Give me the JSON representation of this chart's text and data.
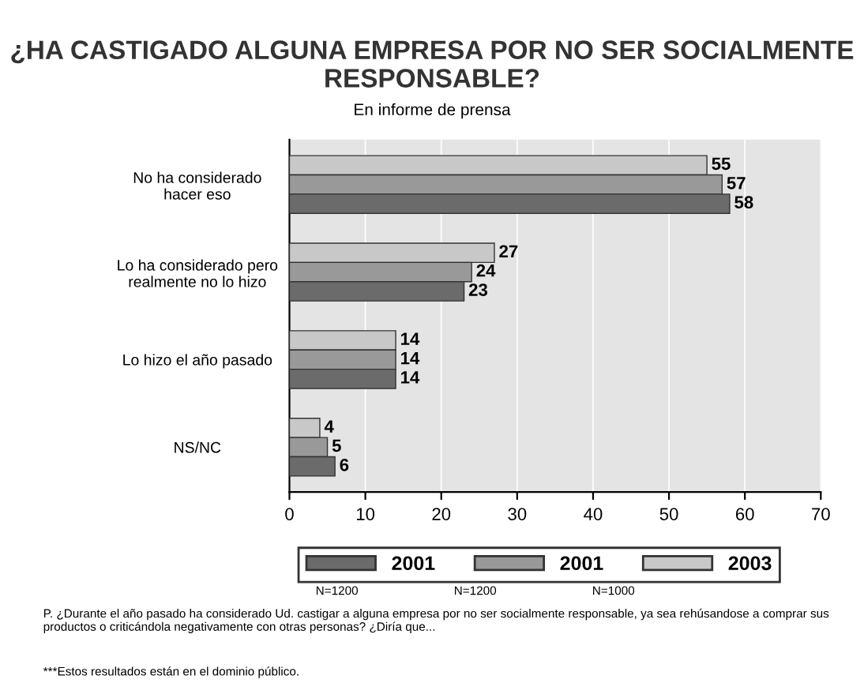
{
  "chart_data": {
    "type": "bar",
    "orientation": "horizontal",
    "title": "¿HA CASTIGADO ALGUNA EMPRESA POR NO SER SOCIALMENTE RESPONSABLE?",
    "subtitle": "En informe de prensa",
    "categories": [
      "No ha considerado\nhacer eso",
      "Lo ha considerado pero\nrealmente no lo hizo",
      "Lo hizo el año pasado",
      "NS/NC"
    ],
    "series": [
      {
        "name": "2003",
        "color": "#c8c8c8",
        "values": [
          55,
          27,
          14,
          4
        ]
      },
      {
        "name": "2001",
        "color": "#999999",
        "values": [
          57,
          24,
          14,
          5
        ]
      },
      {
        "name": "2001",
        "color": "#6b6b6b",
        "values": [
          58,
          23,
          14,
          6
        ]
      }
    ],
    "xlim": [
      0,
      70
    ],
    "xticks": [
      0,
      10,
      20,
      30,
      40,
      50,
      60,
      70
    ],
    "grid": "x",
    "legend": "bottom",
    "data_labels": true,
    "annotations": [
      "N=1200",
      "N=1200",
      "N=1000",
      "P. ¿Durante el año pasado ha considerado Ud. castigar a alguna empresa por no ser socialmente responsable, ya sea rehúsandose a comprar sus productos o criticándola negativamente con otras personas? ¿Diría que...",
      "***Estos resultados están en el dominio público."
    ]
  }
}
